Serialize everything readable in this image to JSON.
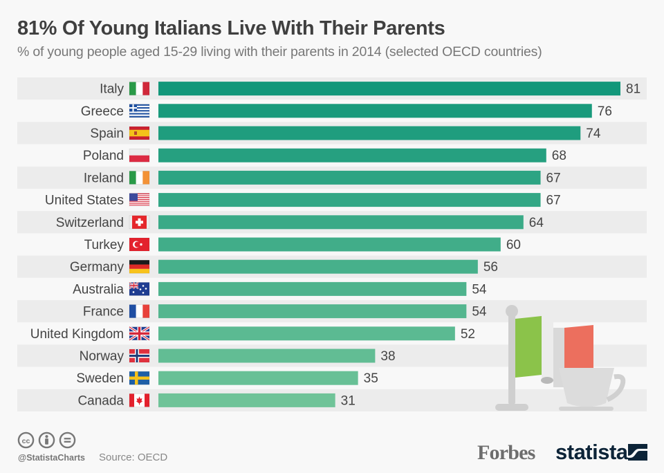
{
  "header": {
    "title": "81% Of Young Italians Live With Their Parents",
    "subtitle": "% of young people aged 15-29 living with their parents in 2014 (selected OECD countries)"
  },
  "chart_data": {
    "type": "bar",
    "orientation": "horizontal",
    "title": "81% Of Young Italians Live With Their Parents",
    "subtitle": "% of young people aged 15-29 living with their parents in 2014 (selected OECD countries)",
    "xlabel": "",
    "ylabel": "",
    "xlim": [
      0,
      81
    ],
    "grid": false,
    "legend": "none",
    "data_labels": true,
    "categories": [
      "Italy",
      "Greece",
      "Spain",
      "Poland",
      "Ireland",
      "United States",
      "Switzerland",
      "Turkey",
      "Germany",
      "Australia",
      "France",
      "United Kingdom",
      "Norway",
      "Sweden",
      "Canada"
    ],
    "values": [
      81,
      76,
      74,
      68,
      67,
      67,
      64,
      60,
      56,
      54,
      54,
      52,
      38,
      35,
      31
    ],
    "flags": [
      "italy-flag",
      "greece-flag",
      "spain-flag",
      "poland-flag",
      "ireland-flag",
      "united-states-flag",
      "switzerland-flag",
      "turkey-flag",
      "germany-flag",
      "australia-flag",
      "france-flag",
      "united-kingdom-flag",
      "norway-flag",
      "sweden-flag",
      "canada-flag"
    ],
    "colors": {
      "bar_start": "#12977a",
      "bar_end": "#6fc398",
      "stripe": "#ececec",
      "label": "#444444"
    }
  },
  "decoration": {
    "illustration": "italian-flag-and-coffee-cup",
    "colors": {
      "green": "#8bc34a",
      "red": "#ec6f5e",
      "grey": "#cfcfcf"
    }
  },
  "footer": {
    "license_icons": [
      "cc-icon",
      "attribution-icon",
      "no-derivatives-icon"
    ],
    "handle": "@StatistaCharts",
    "source": "Source: OECD",
    "partner": "Forbes",
    "brand": "statista"
  }
}
